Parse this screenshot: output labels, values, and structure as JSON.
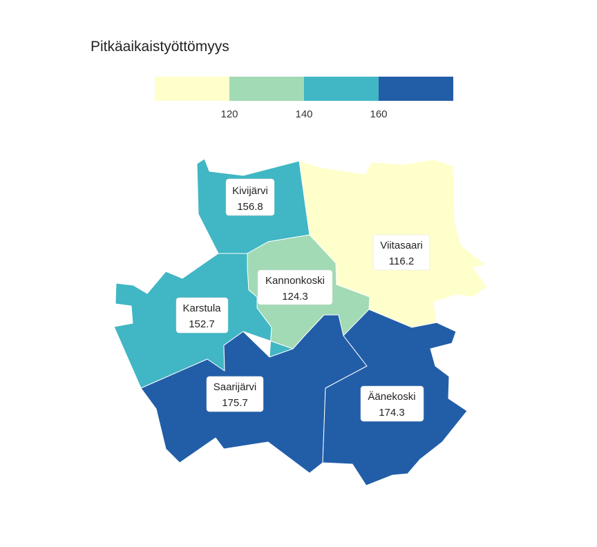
{
  "title": "Pitkäaikaistyöttömyys",
  "legend": {
    "bins": [
      {
        "label": "",
        "color": "#ffffcc"
      },
      {
        "label": "120",
        "color": "#a1dab4"
      },
      {
        "label": "140",
        "color": "#41b6c4"
      },
      {
        "label": "160",
        "color": "#225ea8"
      }
    ]
  },
  "regions": [
    {
      "id": "kivijarvi",
      "name": "Kivijärvi",
      "value": "156.8",
      "color": "#41b6c4"
    },
    {
      "id": "viitasaari",
      "name": "Viitasaari",
      "value": "116.2",
      "color": "#ffffcc"
    },
    {
      "id": "kannonkoski",
      "name": "Kannonkoski",
      "value": "124.3",
      "color": "#a1dab4"
    },
    {
      "id": "karstula",
      "name": "Karstula",
      "value": "152.7",
      "color": "#41b6c4"
    },
    {
      "id": "saarijarvi",
      "name": "Saarijärvi",
      "value": "175.7",
      "color": "#225ea8"
    },
    {
      "id": "aanekoski",
      "name": "Äänekoski",
      "value": "174.3",
      "color": "#225ea8"
    }
  ]
}
